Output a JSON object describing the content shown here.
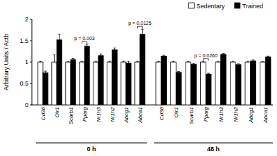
{
  "chart_data": [
    {
      "type": "bar",
      "y_label": "Arbitrary Units / Actb",
      "x_label": "0 h",
      "categories": [
        "Cd36",
        "Olr1",
        "Scarb1",
        "Pparg",
        "Nr1h3",
        "Nr1h2",
        "Abcg1",
        "Abca1"
      ],
      "series": [
        {
          "color": "#ffffff",
          "values": [
            1,
            1,
            1,
            1,
            1,
            1,
            1,
            1
          ],
          "errors": [
            0.02,
            0.17,
            0.02,
            0.02,
            0.02,
            0.02,
            0.02,
            0.02
          ]
        },
        {
          "color": "#000000",
          "values": [
            0.75,
            1.52,
            1.06,
            1.37,
            1.15,
            1.29,
            0.98,
            1.65
          ],
          "errors": [
            0.04,
            0.13,
            0.03,
            0.05,
            0.04,
            0.04,
            0.04,
            0.12
          ]
        }
      ],
      "annotations": [
        {
          "category": "Pparg",
          "text": "p = 0.003"
        },
        {
          "category": "Abca1",
          "text": "p = 0.0125"
        }
      ],
      "ylim": [
        0,
        2
      ],
      "yticks": [
        0,
        0.5,
        1,
        1.5,
        2
      ]
    },
    {
      "type": "bar",
      "x_label": "48 h",
      "categories": [
        "Cd36",
        "Olr1",
        "Scarb1",
        "Pparg",
        "Nr1h3",
        "Nr1h2",
        "Abcg1",
        "Abca1"
      ],
      "series": [
        {
          "name": "Sedentary",
          "color": "#ffffff",
          "values": [
            1,
            1,
            1,
            1,
            1,
            1,
            1,
            1
          ],
          "errors": [
            0.02,
            0.02,
            0.02,
            0.02,
            0.02,
            0.02,
            0.02,
            0.02
          ]
        },
        {
          "name": "Trained",
          "color": "#000000",
          "values": [
            1.14,
            0.76,
            0.95,
            0.72,
            1.18,
            0.94,
            1.03,
            1.12
          ],
          "errors": [
            0.02,
            0.02,
            0.02,
            0.02,
            0.02,
            0.02,
            0.02,
            0.02
          ]
        }
      ],
      "annotations": [
        {
          "category": "Pparg",
          "text": "p = 0.0260"
        }
      ],
      "ylim": [
        0,
        2
      ],
      "tick_labels": "x",
      "legend": "top right"
    }
  ]
}
